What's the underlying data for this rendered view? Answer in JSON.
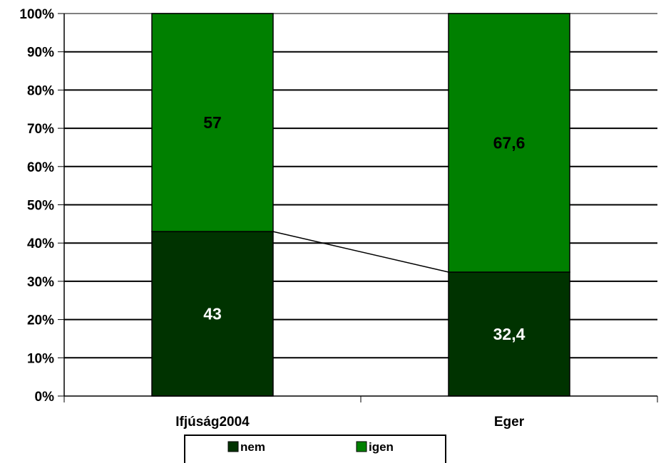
{
  "chart_data": {
    "type": "bar",
    "stacked": true,
    "percent_stacked": true,
    "categories": [
      "Ifjúság2004",
      "Eger"
    ],
    "series": [
      {
        "name": "nem",
        "values": [
          43,
          32.4
        ],
        "labels": [
          "43",
          "32,4"
        ],
        "color": "#003300",
        "label_color": "#ffffff"
      },
      {
        "name": "igen",
        "values": [
          57,
          67.6
        ],
        "labels": [
          "57",
          "67,6"
        ],
        "color": "#008000",
        "label_color": "#000000"
      }
    ],
    "y_ticks": [
      "0%",
      "10%",
      "20%",
      "30%",
      "40%",
      "50%",
      "60%",
      "70%",
      "80%",
      "90%",
      "100%"
    ],
    "ylim": [
      0,
      100
    ],
    "grid": true,
    "series_line": true,
    "legend_position": "bottom",
    "title": "",
    "xlabel": "",
    "ylabel": ""
  }
}
